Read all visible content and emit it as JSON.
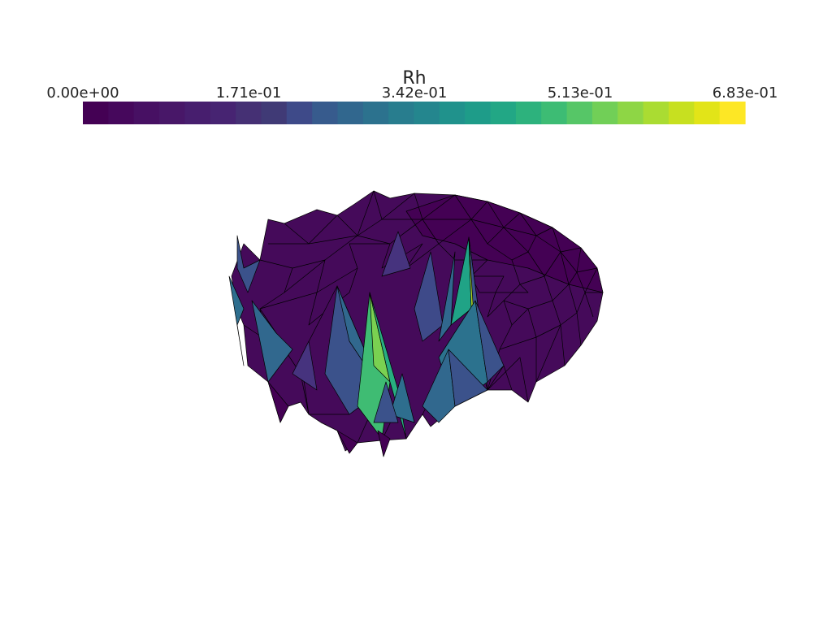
{
  "colorbar": {
    "title": "Rh",
    "ticks": [
      "0.00e+00",
      "1.71e-01",
      "3.42e-01",
      "5.13e-01",
      "6.83e-01"
    ],
    "colors": [
      "#440154",
      "#46085c",
      "#471063",
      "#481768",
      "#471e6e",
      "#472472",
      "#453074",
      "#403a76",
      "#3e4a89",
      "#375b8d",
      "#31678e",
      "#2c728e",
      "#287d8e",
      "#24868e",
      "#20928c",
      "#1e9c89",
      "#22a785",
      "#2db27d",
      "#3dbc74",
      "#56c667",
      "#71cf57",
      "#8ed645",
      "#aadc32",
      "#c7e020",
      "#e2e418",
      "#fde725"
    ]
  },
  "surface": {
    "field": "Rh",
    "peak_fills": [
      "#2e6e8e",
      "#7ad151",
      "#3fbc73",
      "#28ae80",
      "#3b528b",
      "#31688e",
      "#20a386"
    ]
  }
}
